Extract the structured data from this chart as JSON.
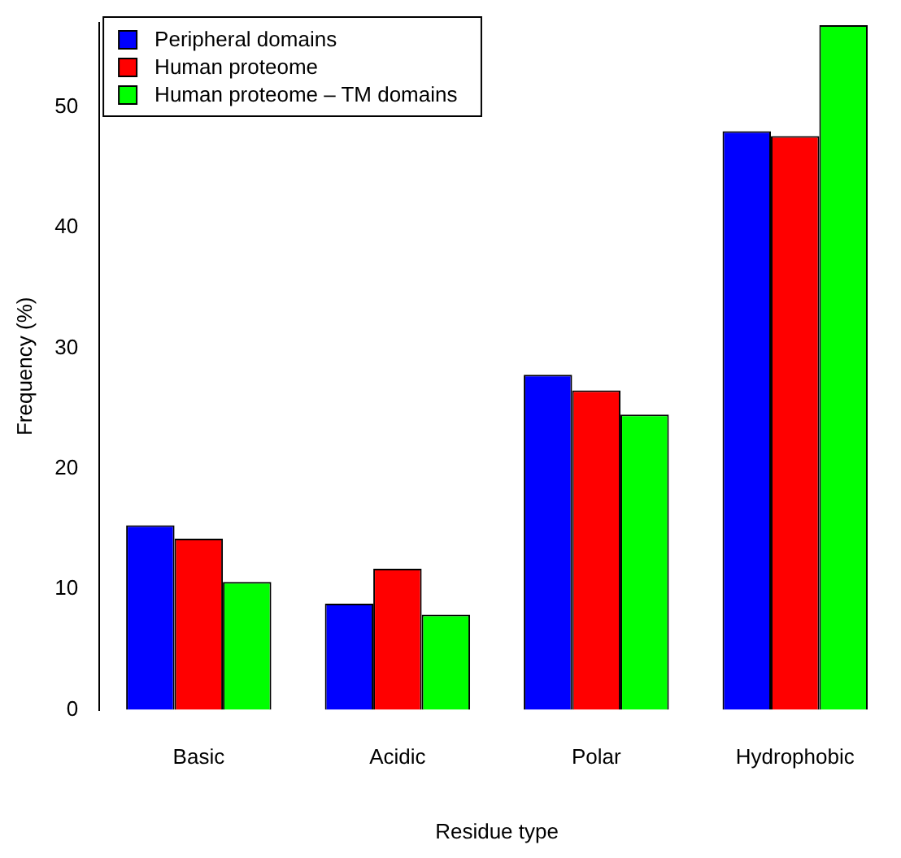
{
  "chart_data": {
    "type": "bar",
    "xlabel": "Residue type",
    "ylabel": "Frequency (%)",
    "categories": [
      "Basic",
      "Acidic",
      "Polar",
      "Hydrophobic"
    ],
    "series": [
      {
        "name": "Peripheral domains",
        "color": "#0000ff",
        "values": [
          15.3,
          8.8,
          27.8,
          48.0
        ]
      },
      {
        "name": "Human proteome",
        "color": "#ff0000",
        "values": [
          14.2,
          11.7,
          26.5,
          47.6
        ]
      },
      {
        "name": "Human proteome – TM domains",
        "color": "#00ff00",
        "values": [
          10.6,
          7.9,
          24.5,
          56.8
        ]
      }
    ],
    "ylim": [
      0,
      57
    ],
    "yticks": [
      0,
      10,
      20,
      30,
      40,
      50
    ],
    "grid": false,
    "legend": "top left"
  }
}
